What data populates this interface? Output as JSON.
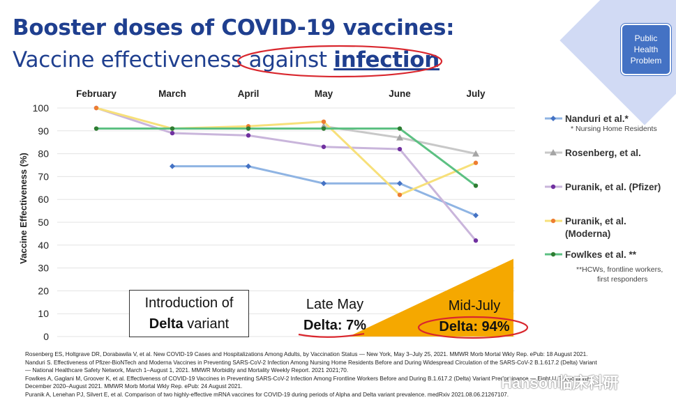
{
  "title_line1": "Booster doses of COVID-19 vaccines:",
  "title_line2_prefix": "Vaccine effectiveness ",
  "title_line2_mid": "against ",
  "title_line2_emph": "infection",
  "badge_text": "Public Health Problem",
  "annotations": {
    "intro_line1": "Introduction of",
    "intro_bold": "Delta",
    "intro_rest": " variant",
    "late_may_line1": "Late May",
    "late_may_line2": "Delta: 7%",
    "mid_july_line1": "Mid-July",
    "mid_july_line2": "Delta: 94%"
  },
  "legend_notes": {
    "nanduri": "* Nursing Home Residents",
    "fowlkes_line1": "**HCWs, frontline workers,",
    "fowlkes_line2": "first responders"
  },
  "references": [
    "Rosenberg ES, Holtgrave DR, Dorabawila V, et al. New COVID-19 Cases and Hospitalizations Among Adults, by Vaccination Status — New York, May 3–July 25, 2021. MMWR Morb Mortal Wkly Rep. ePub: 18 August 2021.",
    "Nanduri S. Effectiveness of Pfizer-BioNTech and Moderna Vaccines in Preventing SARS-CoV-2 Infection Among Nursing Home Residents Before and During Widespread Circulation of the SARS-CoV-2 B.1.617.2 (Delta) Variant",
    "— National Healthcare Safety Network, March 1–August 1, 2021. MMWR Morbidity and Mortality Weekly Report. 2021 2021;70.",
    "Fowlkes A, Gaglani M, Groover K, et al. Effectiveness of COVID-19 Vaccines in Preventing SARS-CoV-2 Infection Among Frontline Workers Before and During B.1.617.2 (Delta) Variant Predominance — Eight U.S. Locations,",
    "December 2020–August 2021. MMWR Morb Mortal Wkly Rep. ePub: 24 August 2021.",
    "Puranik A, Lenehan PJ, Silvert E, et al. Comparison of two highly-effective mRNA vaccines for COVID-19 during periods of Alpha and Delta variant prevalence. medRxiv 2021.08.06.21267107."
  ],
  "watermark": "Hanson临床科研",
  "colors": {
    "title": "#1f3f8f",
    "delta_area": "#f5a800",
    "highlight_ellipse": "#d9272e"
  },
  "chart_data": {
    "type": "line",
    "categories": [
      "February",
      "March",
      "April",
      "May",
      "June",
      "July"
    ],
    "ylabel": "Vaccine Effectiveness (%)",
    "ylim": [
      0,
      100
    ],
    "yticks": [
      0,
      10,
      20,
      30,
      40,
      50,
      60,
      70,
      80,
      90,
      100
    ],
    "grid": true,
    "legend_position": "right",
    "series": [
      {
        "name": "Nanduri et al.*",
        "color": "#8fb4e3",
        "marker": "diamond",
        "marker_color": "#4472c4",
        "values": [
          null,
          74.5,
          74.5,
          67,
          67,
          53
        ]
      },
      {
        "name": "Rosenberg, et al.",
        "color": "#c8c8c8",
        "marker": "triangle",
        "marker_color": "#a5a5a5",
        "values": [
          null,
          null,
          null,
          92,
          87,
          80
        ]
      },
      {
        "name": "Puranik, et al. (Pfizer)",
        "color": "#c9b5db",
        "marker": "circle",
        "marker_color": "#7030a0",
        "values": [
          100,
          89,
          88,
          83,
          82,
          42
        ]
      },
      {
        "name": "Puranik, et al. (Moderna)",
        "color": "#f7e07a",
        "marker": "circle",
        "marker_color": "#ed7d31",
        "values": [
          100,
          91,
          92,
          94,
          62,
          76
        ]
      },
      {
        "name": "Fowlkes et al. **",
        "color": "#5cc082",
        "marker": "circle",
        "marker_color": "#2e7d32",
        "values": [
          91,
          91,
          91,
          91,
          91,
          66
        ]
      }
    ],
    "delta_prevalence": [
      {
        "label": "Late May",
        "percent": 7
      },
      {
        "label": "Mid-July",
        "percent": 94
      }
    ]
  }
}
